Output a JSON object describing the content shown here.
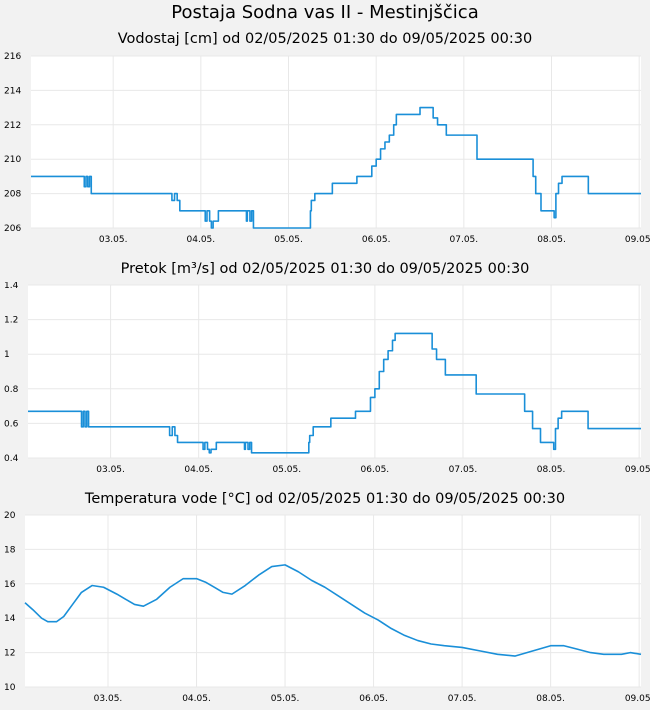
{
  "page": {
    "title": "Postaja Sodna vas II - Mestinjščica"
  },
  "colors": {
    "line": "#1a8fd8",
    "plot_bg": "#ffffff",
    "page_bg": "#f2f2f2",
    "grid": "#e8e8e8"
  },
  "chart_data": [
    {
      "type": "line",
      "title": "Vodostaj [cm] od 02/05/2025 01:30 do 09/05/2025 00:30",
      "xlabel": "",
      "ylabel": "",
      "x_range": [
        1.0625,
        8.0208
      ],
      "ylim": [
        206,
        216
      ],
      "y_ticks": [
        206,
        208,
        210,
        212,
        214,
        216
      ],
      "y_tick_labels": [
        "206",
        "208",
        "210",
        "212",
        "214",
        "216"
      ],
      "x_ticks": [
        2,
        3,
        4,
        5,
        6,
        7,
        8
      ],
      "x_tick_labels": [
        "03.05.",
        "04.05.",
        "05.05.",
        "06.05.",
        "07.05.",
        "08.05.",
        "09.05."
      ],
      "grid": true,
      "step": true,
      "x": [
        1.0625,
        1.67,
        1.69,
        1.71,
        1.73,
        1.75,
        2.67,
        2.7,
        2.73,
        2.76,
        3.05,
        3.07,
        3.1,
        3.12,
        3.14,
        3.2,
        3.52,
        3.53,
        3.56,
        3.58,
        3.6,
        3.8,
        3.81,
        3.84,
        3.86,
        3.88,
        4.25,
        4.26,
        4.3,
        4.5,
        4.78,
        4.95,
        5.0,
        5.05,
        5.1,
        5.15,
        5.2,
        5.23,
        5.5,
        5.58,
        5.65,
        5.7,
        5.8,
        6.15,
        6.7,
        6.79,
        6.82,
        6.85,
        6.88,
        6.92,
        7.03,
        7.05,
        7.08,
        7.12,
        7.2,
        7.42,
        7.46,
        7.6,
        7.64,
        8.0,
        8.0208
      ],
      "y": [
        209,
        208.4,
        209,
        208.4,
        209,
        208,
        207.6,
        208,
        207.6,
        207,
        206.4,
        207,
        206.4,
        206,
        206.4,
        207,
        206.4,
        207,
        206.4,
        207,
        206,
        206,
        206,
        206,
        206,
        206,
        207,
        207.6,
        208,
        208.6,
        209,
        209.6,
        210,
        210.6,
        211,
        211.4,
        212,
        212.6,
        213,
        213,
        212.4,
        212,
        211.4,
        210,
        210,
        209,
        208,
        208,
        207,
        207,
        206.6,
        208,
        208.6,
        209,
        209,
        208,
        208,
        208,
        208,
        208,
        208
      ]
    },
    {
      "type": "line",
      "title": "Pretok [m³/s] od 02/05/2025 01:30 do 09/05/2025 00:30",
      "xlabel": "",
      "ylabel": "",
      "x_range": [
        1.0625,
        8.0208
      ],
      "ylim": [
        0.4,
        1.4
      ],
      "y_ticks": [
        0.4,
        0.6,
        0.8,
        1.0,
        1.2,
        1.4
      ],
      "y_tick_labels": [
        "0.4",
        "0.6",
        "0.8",
        "1",
        "1.2",
        "1.4"
      ],
      "x_ticks": [
        2,
        3,
        4,
        5,
        6,
        7,
        8
      ],
      "x_tick_labels": [
        "03.05.",
        "04.05.",
        "05.05.",
        "06.05.",
        "07.05.",
        "08.05.",
        "09.05."
      ],
      "grid": true,
      "step": true,
      "x": [
        1.0625,
        1.67,
        1.69,
        1.71,
        1.73,
        1.75,
        2.67,
        2.7,
        2.73,
        2.76,
        3.05,
        3.07,
        3.1,
        3.12,
        3.14,
        3.2,
        3.52,
        3.53,
        3.56,
        3.58,
        3.6,
        4.25,
        4.26,
        4.3,
        4.5,
        4.78,
        4.95,
        5.0,
        5.05,
        5.1,
        5.15,
        5.2,
        5.23,
        5.5,
        5.58,
        5.65,
        5.7,
        5.8,
        6.15,
        6.7,
        6.79,
        6.82,
        6.85,
        6.88,
        6.92,
        7.03,
        7.05,
        7.08,
        7.12,
        7.2,
        7.42,
        7.46,
        7.6,
        7.64,
        8.0,
        8.0208
      ],
      "y": [
        0.67,
        0.58,
        0.67,
        0.58,
        0.67,
        0.58,
        0.53,
        0.58,
        0.53,
        0.49,
        0.45,
        0.49,
        0.45,
        0.43,
        0.45,
        0.49,
        0.45,
        0.49,
        0.45,
        0.49,
        0.43,
        0.49,
        0.53,
        0.58,
        0.63,
        0.67,
        0.75,
        0.8,
        0.9,
        0.97,
        1.02,
        1.08,
        1.12,
        1.12,
        1.12,
        1.03,
        0.97,
        0.88,
        0.77,
        0.67,
        0.57,
        0.57,
        0.57,
        0.49,
        0.49,
        0.45,
        0.57,
        0.63,
        0.67,
        0.67,
        0.57,
        0.57,
        0.57,
        0.57,
        0.57,
        0.57
      ]
    },
    {
      "type": "line",
      "title": "Temperatura vode [°C] od 02/05/2025 01:30 do 09/05/2025 00:30",
      "xlabel": "",
      "ylabel": "",
      "x_range": [
        1.0625,
        8.0208
      ],
      "ylim": [
        10,
        20
      ],
      "y_ticks": [
        10,
        12,
        14,
        16,
        18,
        20
      ],
      "y_tick_labels": [
        "10",
        "12",
        "14",
        "16",
        "18",
        "20"
      ],
      "x_ticks": [
        2,
        3,
        4,
        5,
        6,
        7,
        8
      ],
      "x_tick_labels": [
        "03.05.",
        "04.05.",
        "05.05.",
        "06.05.",
        "07.05.",
        "08.05.",
        "09.05."
      ],
      "grid": true,
      "step": false,
      "x": [
        1.0625,
        1.15,
        1.25,
        1.32,
        1.42,
        1.5,
        1.6,
        1.7,
        1.82,
        1.95,
        2.1,
        2.2,
        2.3,
        2.4,
        2.55,
        2.7,
        2.85,
        3.0,
        3.1,
        3.2,
        3.3,
        3.4,
        3.55,
        3.7,
        3.85,
        4.0,
        4.15,
        4.3,
        4.45,
        4.6,
        4.75,
        4.9,
        5.05,
        5.2,
        5.35,
        5.5,
        5.65,
        5.8,
        6.0,
        6.2,
        6.4,
        6.6,
        6.8,
        7.0,
        7.15,
        7.3,
        7.45,
        7.6,
        7.8,
        7.9,
        8.0208
      ],
      "y": [
        14.9,
        14.5,
        14.0,
        13.8,
        13.8,
        14.1,
        14.8,
        15.5,
        15.9,
        15.8,
        15.4,
        15.1,
        14.8,
        14.7,
        15.1,
        15.8,
        16.3,
        16.3,
        16.1,
        15.8,
        15.5,
        15.4,
        15.9,
        16.5,
        17.0,
        17.1,
        16.7,
        16.2,
        15.8,
        15.3,
        14.8,
        14.3,
        13.9,
        13.4,
        13.0,
        12.7,
        12.5,
        12.4,
        12.3,
        12.1,
        11.9,
        11.8,
        12.1,
        12.4,
        12.4,
        12.2,
        12.0,
        11.9,
        11.9,
        12.0,
        11.9
      ]
    }
  ]
}
